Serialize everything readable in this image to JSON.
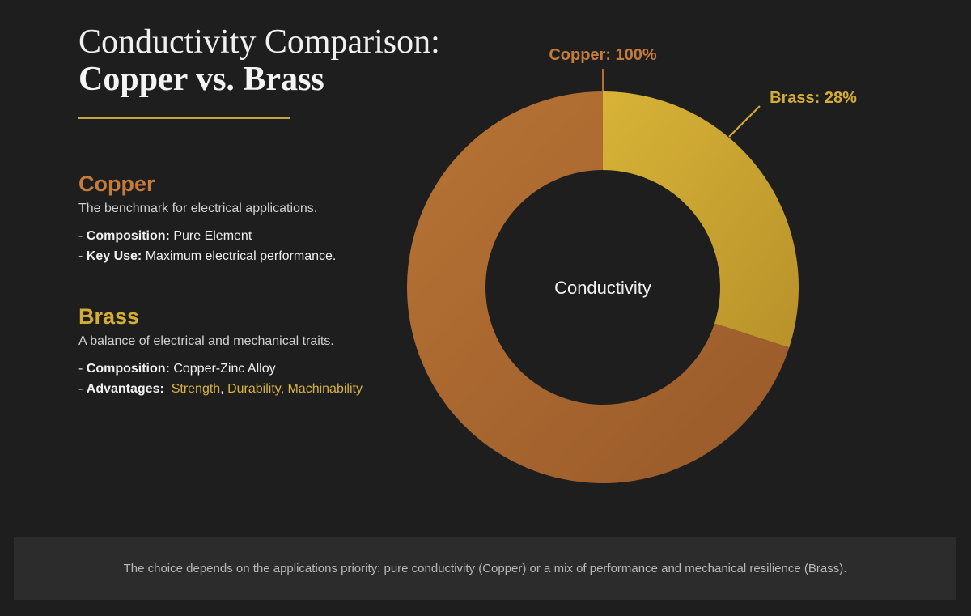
{
  "header": {
    "title_line1": "Conductivity Comparison:",
    "title_line2": "Copper vs. Brass"
  },
  "copper": {
    "name": "Copper",
    "desc": "The benchmark for electrical applications.",
    "items": [
      {
        "label": "Composition:",
        "value": "Pure Element"
      },
      {
        "label": "Key Use:",
        "value": "Maximum electrical performance."
      }
    ]
  },
  "brass": {
    "name": "Brass",
    "desc": "A balance of electrical and mechanical traits.",
    "composition_label": "Composition:",
    "composition_value": "Copper-Zinc Alloy",
    "advantages_label": "Advantages:",
    "advantages": [
      "Strength",
      "Durability",
      "Machinability"
    ]
  },
  "colors": {
    "copper": "#b36f33",
    "brass": "#d4ad35",
    "background": "#1e1e1e"
  },
  "chart_data": {
    "type": "pie",
    "variant": "donut",
    "center_label": "Conductivity",
    "series": [
      {
        "name": "Copper",
        "value": 100,
        "label": "Copper: 100%",
        "color": "#b36f33"
      },
      {
        "name": "Brass",
        "value": 28,
        "label": "Brass: 28%",
        "color": "#d4ad35"
      }
    ]
  },
  "footer": {
    "text": "The choice depends on the applications priority: pure conductivity (Copper) or a mix of performance and mechanical resilience (Brass)."
  }
}
